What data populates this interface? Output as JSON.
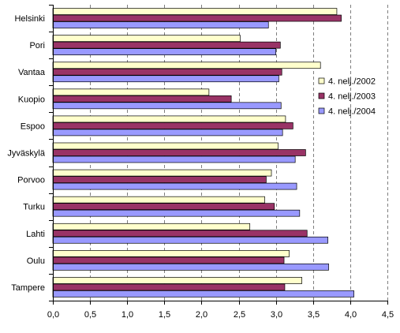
{
  "chart_data": {
    "type": "bar",
    "orientation": "horizontal",
    "categories": [
      "Helsinki",
      "Pori",
      "Vantaa",
      "Kuopio",
      "Espoo",
      "Jyväskylä",
      "Porvoo",
      "Turku",
      "Lahti",
      "Oulu",
      "Tampere"
    ],
    "series": [
      {
        "name": "4. nelj./2002",
        "color": "#FFFFCC",
        "values": [
          3.82,
          2.52,
          3.6,
          2.1,
          3.13,
          3.03,
          2.94,
          2.85,
          2.65,
          3.18,
          3.35
        ]
      },
      {
        "name": "4. nelj./2003",
        "color": "#993366",
        "values": [
          3.88,
          3.06,
          3.08,
          2.4,
          3.23,
          3.4,
          2.87,
          2.98,
          3.42,
          3.11,
          3.12
        ]
      },
      {
        "name": "4. nelj./2004",
        "color": "#9999FF",
        "values": [
          2.9,
          3.0,
          3.04,
          3.07,
          3.09,
          3.26,
          3.28,
          3.32,
          3.7,
          3.71,
          4.05
        ]
      }
    ],
    "xlim": [
      0,
      4.5
    ],
    "ticks": [
      "0,0",
      "0,5",
      "1,0",
      "1,5",
      "2,0",
      "2,5",
      "3,0",
      "3,5",
      "4,0",
      "4,5"
    ],
    "grid": "vertical-dashed",
    "legend_position": "right"
  }
}
